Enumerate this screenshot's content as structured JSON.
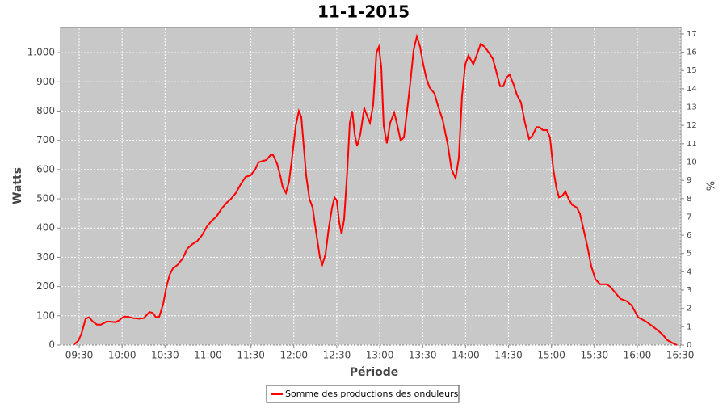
{
  "chart_data": {
    "type": "line",
    "title": "11-1-2015",
    "xlabel": "Période",
    "ylabel": "Watts",
    "y2label": "%",
    "x": [
      566.0,
      569.4,
      571.7,
      574.5,
      576.8,
      579.6,
      582.4,
      585.2,
      589.2,
      592.0,
      595.4,
      598.2,
      601.0,
      603.9,
      607.8,
      611.8,
      615.2,
      619.1,
      621.4,
      623.6,
      625.9,
      628.7,
      631.0,
      633.2,
      635.5,
      638.9,
      642.2,
      645.6,
      649.0,
      652.4,
      655.8,
      659.2,
      662.6,
      666.0,
      669.3,
      672.7,
      676.1,
      679.5,
      682.9,
      686.3,
      689.7,
      693.0,
      695.3,
      698.7,
      700.9,
      703.8,
      705.5,
      708.3,
      710.5,
      712.2,
      714.5,
      716.7,
      719.0,
      721.3,
      723.5,
      725.2,
      726.9,
      728.6,
      730.9,
      733.1,
      735.4,
      738.2,
      739.9,
      742.1,
      744.4,
      746.7,
      748.4,
      750.0,
      751.7,
      753.4,
      755.1,
      757.4,
      759.1,
      760.8,
      762.5,
      764.2,
      766.4,
      769.2,
      771.5,
      773.2,
      775.4,
      777.7,
      779.4,
      781.1,
      782.8,
      785.0,
      787.3,
      790.1,
      792.4,
      794.6,
      796.9,
      799.1,
      801.4,
      803.7,
      805.9,
      808.2,
      810.4,
      812.7,
      814.9,
      818.3,
      820.6,
      824.0,
      827.4,
      830.2,
      833.0,
      835.3,
      837.5,
      839.8,
      842.0,
      845.4,
      847.7,
      850.5,
      853.3,
      856.2,
      859.0,
      861.2,
      864.1,
      866.3,
      868.6,
      870.8,
      873.6,
      875.9,
      878.7,
      881.5,
      884.4,
      886.6,
      889.5,
      891.7,
      894.0,
      896.8,
      899.0,
      901.3,
      903.6,
      905.3,
      907.5,
      909.8,
      912.0,
      914.3,
      917.7,
      919.9,
      922.2,
      925.0,
      927.8,
      930.7,
      934.0,
      938.6,
      941.4,
      944.8,
      948.2,
      952.7,
      956.1,
      960.6,
      966.2,
      971.8,
      977.5,
      980.9,
      985.4,
      987.7
    ],
    "series": [
      {
        "name": "Somme des productions des onduleurs",
        "color": "#ff0000",
        "values": [
          0,
          15,
          40,
          90,
          95,
          80,
          70,
          70,
          80,
          80,
          78,
          85,
          97,
          97,
          92,
          90,
          92,
          113,
          110,
          95,
          97,
          140,
          200,
          240,
          262,
          275,
          295,
          330,
          345,
          355,
          375,
          405,
          425,
          440,
          465,
          485,
          500,
          520,
          550,
          575,
          580,
          600,
          625,
          630,
          633,
          650,
          650,
          620,
          580,
          540,
          520,
          560,
          650,
          750,
          800,
          780,
          680,
          580,
          500,
          470,
          390,
          300,
          275,
          310,
          400,
          470,
          505,
          495,
          420,
          380,
          430,
          600,
          760,
          800,
          720,
          680,
          720,
          810,
          780,
          760,
          820,
          1000,
          1020,
          950,
          750,
          690,
          760,
          795,
          750,
          700,
          710,
          800,
          900,
          1010,
          1055,
          1020,
          960,
          910,
          880,
          860,
          820,
          770,
          690,
          600,
          570,
          640,
          850,
          960,
          990,
          960,
          990,
          1030,
          1020,
          1000,
          980,
          940,
          885,
          885,
          915,
          925,
          890,
          855,
          830,
          760,
          705,
          715,
          745,
          745,
          735,
          735,
          710,
          600,
          535,
          505,
          510,
          525,
          500,
          480,
          470,
          450,
          400,
          340,
          270,
          225,
          208,
          208,
          198,
          178,
          158,
          150,
          135,
          95,
          80,
          60,
          37,
          17,
          5,
          0
        ]
      }
    ],
    "xlim": [
      557,
      990.5
    ],
    "xticks": [
      {
        "value": 570,
        "label": "09:30"
      },
      {
        "value": 600,
        "label": "10:00"
      },
      {
        "value": 630,
        "label": "10:30"
      },
      {
        "value": 660,
        "label": "11:00"
      },
      {
        "value": 690,
        "label": "11:30"
      },
      {
        "value": 720,
        "label": "12:00"
      },
      {
        "value": 750,
        "label": "12:30"
      },
      {
        "value": 780,
        "label": "13:00"
      },
      {
        "value": 810,
        "label": "13:30"
      },
      {
        "value": 840,
        "label": "14:00"
      },
      {
        "value": 870,
        "label": "14:30"
      },
      {
        "value": 900,
        "label": "15:00"
      },
      {
        "value": 930,
        "label": "15:30"
      },
      {
        "value": 960,
        "label": "16:00"
      },
      {
        "value": 990,
        "label": "16:30"
      }
    ],
    "ylim": [
      0,
      1086
    ],
    "yticks": [
      0,
      100,
      200,
      300,
      400,
      500,
      600,
      700,
      800,
      900,
      {
        "value": 1000,
        "label": "1.000"
      }
    ],
    "y2lim": [
      0,
      17.35
    ],
    "y2ticks": [
      0,
      1,
      2,
      3,
      4,
      5,
      6,
      7,
      8,
      9,
      10,
      11,
      12,
      13,
      14,
      15,
      16,
      17
    ],
    "grid": true
  }
}
